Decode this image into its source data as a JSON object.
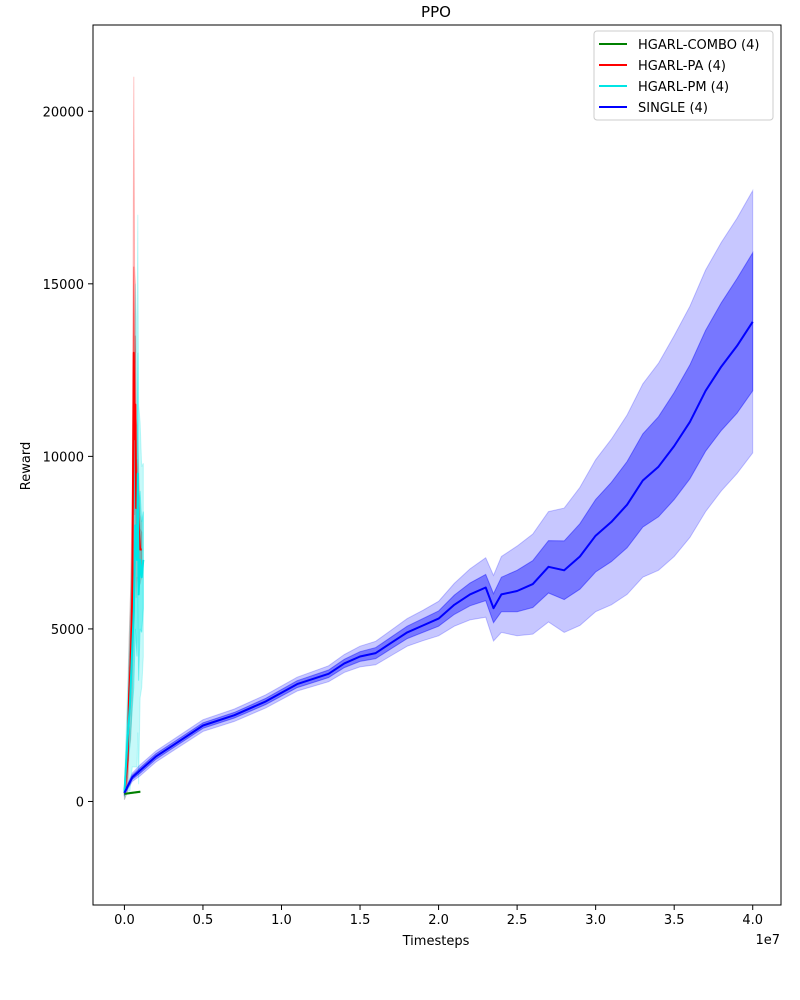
{
  "chart_data": {
    "type": "line",
    "title": "PPO",
    "xlabel": "Timesteps",
    "ylabel": "Reward",
    "x_offset_label": "1e7",
    "xlim": [
      -0.2,
      4.18
    ],
    "ylim": [
      -3000,
      22500
    ],
    "x_ticks": [
      0.0,
      0.5,
      1.0,
      1.5,
      2.0,
      2.5,
      3.0,
      3.5,
      4.0
    ],
    "x_tick_labels": [
      "0.0",
      "0.5",
      "1.0",
      "1.5",
      "2.0",
      "2.5",
      "3.0",
      "3.5",
      "4.0"
    ],
    "y_ticks": [
      0,
      5000,
      10000,
      15000,
      20000
    ],
    "y_tick_labels": [
      "0",
      "5000",
      "10000",
      "15000",
      "20000"
    ],
    "grid": false,
    "legend_position": "top-right",
    "series": [
      {
        "name": "HGARL-COMBO (4)",
        "color": "#008000",
        "x": [
          0.0,
          0.05,
          0.1
        ],
        "y": [
          220,
          250,
          280
        ],
        "band_inner": [
          10,
          10,
          10
        ],
        "band_outer": [
          20,
          20,
          20
        ]
      },
      {
        "name": "HGARL-PA (4)",
        "color": "#ff0000",
        "x": [
          0.0,
          0.02,
          0.03,
          0.04,
          0.05,
          0.06,
          0.065,
          0.07,
          0.075,
          0.08,
          0.09,
          0.1,
          0.11
        ],
        "y": [
          250,
          1200,
          3100,
          4000,
          6000,
          13000,
          10500,
          11500,
          8500,
          8700,
          8000,
          7300,
          7300
        ],
        "band_inner": [
          100,
          500,
          800,
          1100,
          1500,
          2500,
          2200,
          2000,
          1400,
          1200,
          900,
          600,
          500
        ],
        "band_outer": [
          200,
          900,
          1600,
          2200,
          3000,
          8000,
          5000,
          3500,
          2600,
          2200,
          1700,
          1000,
          800
        ]
      },
      {
        "name": "HGARL-PM (4)",
        "color": "#00e5e5",
        "x": [
          0.0,
          0.02,
          0.035,
          0.05,
          0.06,
          0.07,
          0.08,
          0.085,
          0.09,
          0.1,
          0.11,
          0.12
        ],
        "y": [
          250,
          1800,
          2800,
          4500,
          5500,
          8000,
          7000,
          9500,
          6000,
          7000,
          6500,
          7000
        ],
        "band_inner": [
          100,
          800,
          1200,
          1800,
          2200,
          3000,
          2800,
          3500,
          2500,
          2000,
          1600,
          1400
        ],
        "band_outer": [
          200,
          1500,
          2500,
          3500,
          4500,
          7000,
          6000,
          7500,
          5500,
          4000,
          3200,
          2800
        ]
      },
      {
        "name": "SINGLE (4)",
        "color": "#0000ff",
        "x": [
          0.0,
          0.05,
          0.1,
          0.2,
          0.3,
          0.5,
          0.7,
          0.9,
          1.1,
          1.3,
          1.4,
          1.5,
          1.6,
          1.7,
          1.8,
          1.9,
          2.0,
          2.1,
          2.2,
          2.3,
          2.35,
          2.4,
          2.5,
          2.6,
          2.7,
          2.8,
          2.9,
          3.0,
          3.1,
          3.2,
          3.3,
          3.4,
          3.5,
          3.6,
          3.7,
          3.8,
          3.9,
          4.0
        ],
        "y": [
          250,
          700,
          900,
          1300,
          1600,
          2200,
          2500,
          2900,
          3400,
          3700,
          4000,
          4200,
          4300,
          4600,
          4900,
          5100,
          5300,
          5700,
          6000,
          6200,
          5600,
          6000,
          6100,
          6300,
          6800,
          6700,
          7100,
          7700,
          8100,
          8600,
          9300,
          9700,
          10300,
          11000,
          11900,
          12600,
          13200,
          13900
        ],
        "band_inner": [
          30,
          60,
          80,
          80,
          80,
          80,
          80,
          90,
          100,
          110,
          120,
          140,
          160,
          170,
          180,
          200,
          220,
          280,
          330,
          380,
          420,
          500,
          600,
          680,
          760,
          850,
          950,
          1050,
          1150,
          1250,
          1350,
          1450,
          1550,
          1650,
          1750,
          1850,
          1950,
          2000
        ],
        "band_outer": [
          60,
          120,
          160,
          160,
          160,
          170,
          180,
          190,
          200,
          230,
          260,
          300,
          340,
          370,
          400,
          440,
          500,
          620,
          740,
          860,
          950,
          1100,
          1300,
          1450,
          1600,
          1800,
          2000,
          2200,
          2400,
          2600,
          2800,
          3000,
          3200,
          3350,
          3500,
          3600,
          3700,
          3800
        ]
      }
    ]
  }
}
